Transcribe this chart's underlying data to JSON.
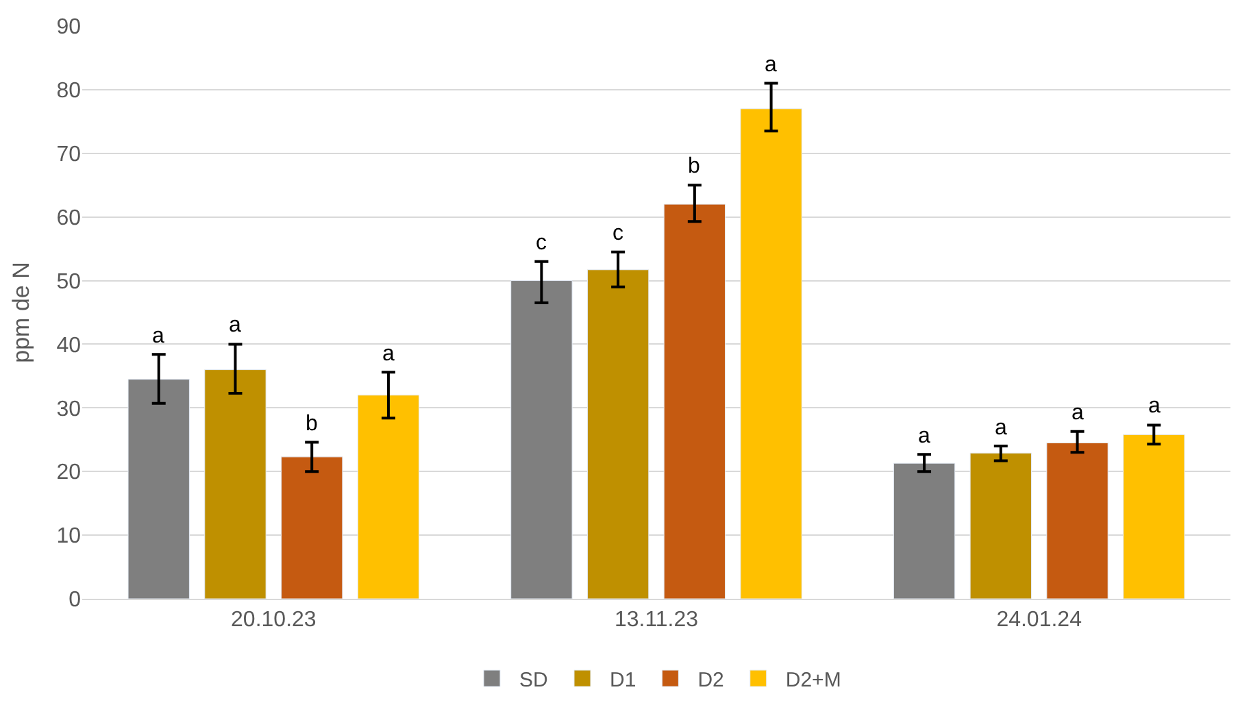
{
  "chart_data": {
    "type": "bar",
    "ylabel": "ppm de N",
    "categories": [
      "20.10.23",
      "13.11.23",
      "24.01.24"
    ],
    "series": [
      {
        "name": "SD",
        "color": "#7f7f7f",
        "values": [
          34.5,
          50,
          21.3
        ],
        "errors": [
          [
            30.7,
            38.4
          ],
          [
            46.5,
            53
          ],
          [
            20,
            22.7
          ]
        ],
        "value_labels": [
          "a",
          "c",
          "a"
        ]
      },
      {
        "name": "D1",
        "color": "#bf9000",
        "values": [
          36,
          51.7,
          22.9
        ],
        "errors": [
          [
            32.3,
            40
          ],
          [
            49,
            54.5
          ],
          [
            21.7,
            24
          ]
        ],
        "value_labels": [
          "a",
          "c",
          "a"
        ]
      },
      {
        "name": "D2",
        "color": "#c55a11",
        "values": [
          22.3,
          62,
          24.5
        ],
        "errors": [
          [
            20,
            24.6
          ],
          [
            59.3,
            65
          ],
          [
            23,
            26.3
          ]
        ],
        "value_labels": [
          "b",
          "b",
          "a"
        ]
      },
      {
        "name": "D2+M",
        "color": "#ffc000",
        "values": [
          32,
          77,
          25.8
        ],
        "errors": [
          [
            28.4,
            35.6
          ],
          [
            73.5,
            81
          ],
          [
            24.3,
            27.3
          ]
        ],
        "value_labels": [
          "a",
          "a",
          "a"
        ]
      }
    ],
    "ylim": [
      0,
      90
    ],
    "yticks": [
      0,
      10,
      20,
      30,
      40,
      50,
      60,
      70,
      80,
      90
    ],
    "grid": "y",
    "legend": "bottom"
  }
}
